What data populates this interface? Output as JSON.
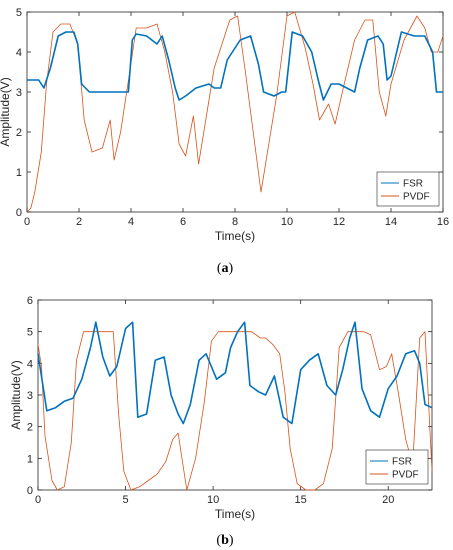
{
  "colors": {
    "fsr": "#0072BD",
    "pvdf": "#D95319",
    "axis": "#262626"
  },
  "chart_data": [
    {
      "id": "a",
      "type": "line",
      "caption": "(a)",
      "xlabel": "Time(s)",
      "ylabel": "Amplitude(V)",
      "xlim": [
        0,
        16
      ],
      "ylim": [
        0,
        5
      ],
      "xticks": [
        0,
        2,
        4,
        6,
        8,
        10,
        12,
        14,
        16
      ],
      "yticks": [
        0,
        1,
        2,
        3,
        4,
        5
      ],
      "grid": false,
      "legend": "bottom-right",
      "series": [
        {
          "name": "FSR",
          "x": [
            0,
            0.45,
            0.65,
            0.9,
            1.2,
            1.5,
            1.8,
            1.95,
            2.1,
            2.4,
            3.0,
            3.5,
            3.9,
            4.05,
            4.2,
            4.6,
            5.0,
            5.2,
            5.45,
            5.7,
            5.85,
            6.1,
            6.5,
            7.0,
            7.2,
            7.45,
            7.7,
            8.2,
            8.6,
            8.9,
            9.1,
            9.5,
            9.8,
            9.95,
            10.2,
            10.6,
            10.95,
            11.2,
            11.4,
            11.7,
            12.0,
            12.3,
            12.6,
            12.8,
            13.1,
            13.5,
            13.7,
            13.85,
            14.0,
            14.4,
            14.9,
            15.3,
            15.6,
            15.75,
            15.9,
            16.0
          ],
          "y": [
            3.3,
            3.3,
            3.1,
            3.6,
            4.4,
            4.5,
            4.5,
            4.2,
            3.2,
            3.0,
            3.0,
            3.0,
            3.0,
            4.3,
            4.45,
            4.4,
            4.2,
            4.4,
            3.8,
            3.1,
            2.8,
            2.9,
            3.1,
            3.2,
            3.1,
            3.1,
            3.8,
            4.3,
            4.4,
            3.7,
            3.0,
            2.9,
            3.0,
            3.0,
            4.5,
            4.4,
            4.0,
            3.3,
            2.8,
            3.2,
            3.2,
            3.1,
            3.0,
            3.6,
            4.3,
            4.4,
            4.2,
            3.3,
            3.4,
            4.5,
            4.4,
            4.4,
            4.0,
            3.0,
            3.0,
            3.0
          ]
        },
        {
          "name": "PVDF",
          "x": [
            0,
            0.15,
            0.3,
            0.55,
            0.75,
            1.0,
            1.3,
            1.65,
            1.95,
            2.2,
            2.5,
            2.9,
            3.2,
            3.35,
            3.6,
            3.95,
            4.2,
            4.6,
            5.0,
            5.3,
            5.6,
            5.85,
            6.1,
            6.4,
            6.6,
            6.85,
            7.2,
            7.8,
            8.1,
            8.4,
            8.7,
            9.0,
            9.2,
            9.6,
            10.0,
            10.3,
            10.7,
            11.0,
            11.25,
            11.6,
            11.85,
            12.2,
            12.6,
            13.0,
            13.3,
            13.55,
            13.8,
            14.0,
            14.5,
            15.0,
            15.3,
            15.55,
            15.8,
            16.0
          ],
          "y": [
            0.0,
            0.1,
            0.5,
            1.5,
            3.2,
            4.5,
            4.7,
            4.7,
            4.2,
            2.3,
            1.5,
            1.6,
            2.3,
            1.3,
            2.0,
            3.5,
            4.6,
            4.6,
            4.7,
            4.0,
            3.0,
            1.7,
            1.4,
            2.4,
            1.2,
            2.2,
            3.6,
            4.8,
            4.9,
            3.5,
            2.0,
            0.5,
            1.3,
            2.9,
            4.9,
            5.0,
            4.1,
            3.2,
            2.3,
            2.7,
            2.2,
            3.2,
            4.3,
            4.8,
            4.8,
            3.0,
            2.4,
            3.2,
            4.3,
            4.9,
            4.6,
            4.0,
            4.0,
            4.4
          ]
        }
      ]
    },
    {
      "id": "b",
      "type": "line",
      "caption": "(b)",
      "xlabel": "Time(s)",
      "ylabel": "Amplitude(V)",
      "xlim": [
        0,
        22.5
      ],
      "ylim": [
        0,
        6
      ],
      "xticks": [
        0,
        5,
        10,
        15,
        20
      ],
      "yticks": [
        0,
        1,
        2,
        3,
        4,
        5,
        6
      ],
      "grid": false,
      "legend": "bottom-right",
      "series": [
        {
          "name": "FSR",
          "x": [
            0,
            0.5,
            1.0,
            1.5,
            2.0,
            2.5,
            3.0,
            3.3,
            3.7,
            4.1,
            4.5,
            5.0,
            5.4,
            5.7,
            6.2,
            6.7,
            7.2,
            7.6,
            8.0,
            8.3,
            8.7,
            9.2,
            9.6,
            10.2,
            10.7,
            11.0,
            11.4,
            11.8,
            12.1,
            12.6,
            13.0,
            13.5,
            14.0,
            14.5,
            15.0,
            15.5,
            16.0,
            16.5,
            17.0,
            17.4,
            17.8,
            18.1,
            18.5,
            19.0,
            19.5,
            20.0,
            20.5,
            21.0,
            21.5,
            21.8,
            22.1,
            22.5
          ],
          "y": [
            4.3,
            2.5,
            2.6,
            2.8,
            2.9,
            3.5,
            4.5,
            5.3,
            4.2,
            3.6,
            3.9,
            5.1,
            5.3,
            2.3,
            2.4,
            4.1,
            4.2,
            3.0,
            2.4,
            2.1,
            2.7,
            4.1,
            4.3,
            3.5,
            3.7,
            4.5,
            5.0,
            5.3,
            3.3,
            3.1,
            3.0,
            3.6,
            2.3,
            2.1,
            3.8,
            4.1,
            4.3,
            3.3,
            3.0,
            3.8,
            4.8,
            5.3,
            3.2,
            2.5,
            2.3,
            3.2,
            3.6,
            4.3,
            4.4,
            4.0,
            2.7,
            2.6
          ]
        },
        {
          "name": "PVDF",
          "x": [
            0,
            0.2,
            0.4,
            0.8,
            1.1,
            1.5,
            1.9,
            2.2,
            2.6,
            3.0,
            3.7,
            4.3,
            4.6,
            4.9,
            5.3,
            5.8,
            6.3,
            6.8,
            7.3,
            7.7,
            8.0,
            8.5,
            9.0,
            9.5,
            9.9,
            10.3,
            10.6,
            11.0,
            11.8,
            12.2,
            12.7,
            13.0,
            13.4,
            13.8,
            14.1,
            14.4,
            14.8,
            15.3,
            15.8,
            16.3,
            16.8,
            17.2,
            17.7,
            18.1,
            18.6,
            19.0,
            19.5,
            19.9,
            20.2,
            20.6,
            21.0,
            21.4,
            21.8,
            22.1,
            22.5
          ],
          "y": [
            4.6,
            3.9,
            1.7,
            0.3,
            0.0,
            0.1,
            1.5,
            4.1,
            5.0,
            5.0,
            5.0,
            5.0,
            2.4,
            0.6,
            0.0,
            0.1,
            0.3,
            0.5,
            0.9,
            1.6,
            1.8,
            0.0,
            1.0,
            2.8,
            4.7,
            5.0,
            5.0,
            5.0,
            5.0,
            5.0,
            4.8,
            4.8,
            4.6,
            4.3,
            3.1,
            1.3,
            0.2,
            0.0,
            0.0,
            0.2,
            1.3,
            4.5,
            5.0,
            5.0,
            5.0,
            4.9,
            3.8,
            3.9,
            4.3,
            3.0,
            1.6,
            0.8,
            4.8,
            5.0,
            0.6
          ]
        }
      ]
    }
  ]
}
